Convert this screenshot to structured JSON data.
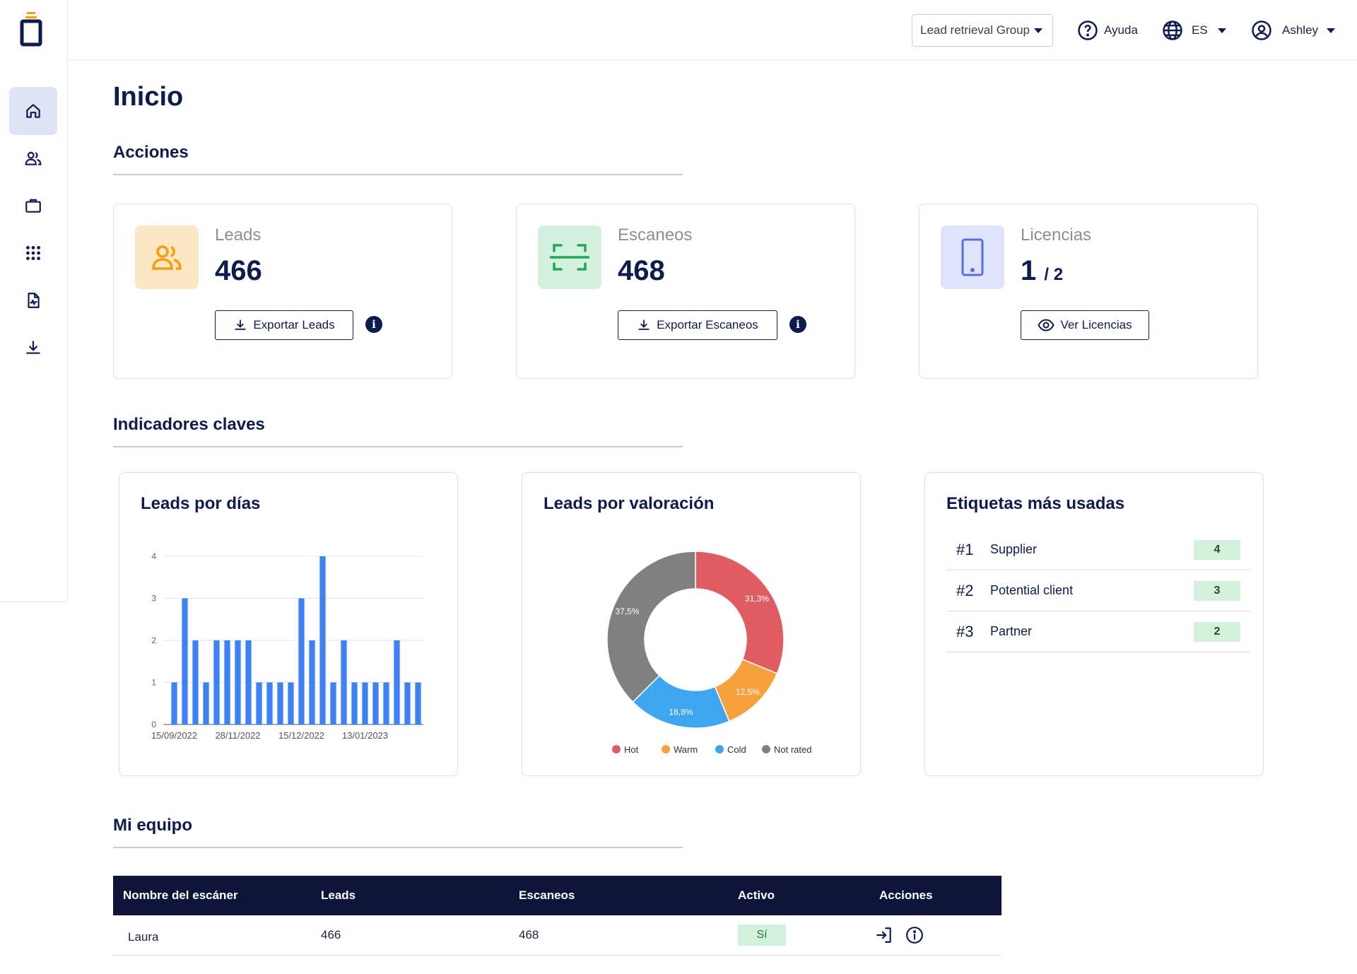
{
  "topbar": {
    "group_select": "Lead retrieval Group",
    "help_label": "Ayuda",
    "language": "ES",
    "user_name": "Ashley"
  },
  "sidebar": {
    "items": [
      {
        "icon": "home-icon",
        "active": true
      },
      {
        "icon": "users-icon",
        "active": false
      },
      {
        "icon": "briefcase-icon",
        "active": false
      },
      {
        "icon": "grid-icon",
        "active": false
      },
      {
        "icon": "document-icon",
        "active": false
      },
      {
        "icon": "download-icon",
        "active": false
      }
    ]
  },
  "page": {
    "title": "Inicio"
  },
  "sections": {
    "actions": "Acciones",
    "kpis": "Indicadores claves",
    "team": "Mi equipo"
  },
  "cards": {
    "leads": {
      "label": "Leads",
      "value": "466",
      "button": "Exportar Leads",
      "info": "i"
    },
    "scans": {
      "label": "Escaneos",
      "value": "468",
      "button": "Exportar Escaneos",
      "info": "i"
    },
    "licenses": {
      "label": "Licencias",
      "used": "1",
      "total": "/ 2",
      "button": "Ver Licencias"
    }
  },
  "kpi": {
    "leads_by_day_title": "Leads por días",
    "leads_by_rating_title": "Leads por valoración",
    "top_tags_title": "Etiquetas más usadas",
    "tags": [
      {
        "rank": "#1",
        "name": "Supplier",
        "count": "4"
      },
      {
        "rank": "#2",
        "name": "Potential client",
        "count": "3"
      },
      {
        "rank": "#3",
        "name": "Partner",
        "count": "2"
      }
    ]
  },
  "chart_data": [
    {
      "type": "bar",
      "title": "Leads por días",
      "x_tick_labels": [
        "15/09/2022",
        "28/11/2022",
        "15/12/2022",
        "13/01/2023"
      ],
      "y_ticks": [
        "0",
        "1",
        "2",
        "3",
        "4"
      ],
      "ylim": [
        0,
        4
      ],
      "values": [
        1,
        3,
        2,
        1,
        2,
        2,
        2,
        2,
        1,
        1,
        1,
        1,
        3,
        2,
        4,
        1,
        2,
        1,
        1,
        1,
        1,
        2,
        1,
        1
      ],
      "color": "#3b82f6",
      "grid": true
    },
    {
      "type": "pie",
      "title": "Leads por valoración",
      "donut": true,
      "slices": [
        {
          "name": "Hot",
          "value": 31.3,
          "label": "31,3%",
          "color": "#e05c63"
        },
        {
          "name": "Warm",
          "value": 12.5,
          "label": "12,5%",
          "color": "#f7a13d"
        },
        {
          "name": "Cold",
          "value": 18.8,
          "label": "18,8%",
          "color": "#3ea6f0"
        },
        {
          "name": "Not rated",
          "value": 37.5,
          "label": "37,5%",
          "color": "#808080"
        }
      ],
      "legend": "bottom"
    }
  ],
  "team": {
    "headers": [
      "Nombre del escáner",
      "Leads",
      "Escaneos",
      "Activo",
      "Acciones"
    ],
    "rows": [
      {
        "name": "Laura",
        "leads": "466",
        "scans": "468",
        "active": "Sí"
      }
    ]
  }
}
